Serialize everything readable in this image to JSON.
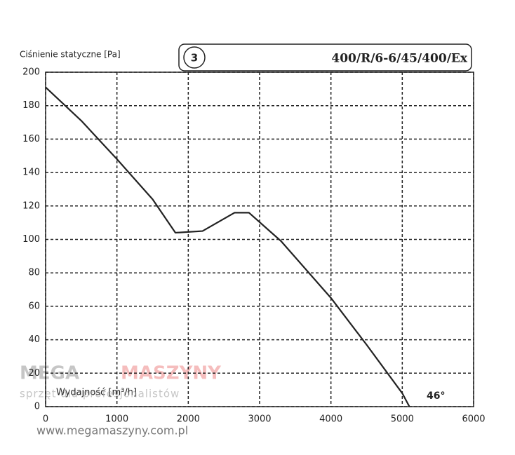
{
  "chart_data": {
    "type": "line",
    "title": "400/R/6-6/45/400/Ex",
    "curve_number": "3",
    "y_label": "Ciśnienie statyczne [Pa]",
    "x_label": "Wydajność [m³/h]",
    "annotation": "46°",
    "x": [
      0,
      500,
      1000,
      1500,
      1820,
      2200,
      2650,
      2850,
      3300,
      4000,
      4500,
      5000,
      5100
    ],
    "values": [
      191,
      171,
      148,
      124,
      104,
      105,
      116,
      116,
      99,
      65,
      37,
      8,
      0
    ],
    "color": "#222222",
    "xlim": [
      0,
      6000
    ],
    "xticks": [
      0,
      1000,
      2000,
      3000,
      4000,
      5000,
      6000
    ],
    "ylim": [
      0,
      200
    ],
    "yticks": [
      0,
      20,
      40,
      60,
      80,
      100,
      120,
      140,
      160,
      180,
      200
    ],
    "grid": true
  },
  "watermark": {
    "brand_left": "MEGA",
    "brand_right": "MASZYNY",
    "tagline": "sprzęt dla profesjonalistów",
    "url": "www.megamaszyny.com.pl"
  }
}
